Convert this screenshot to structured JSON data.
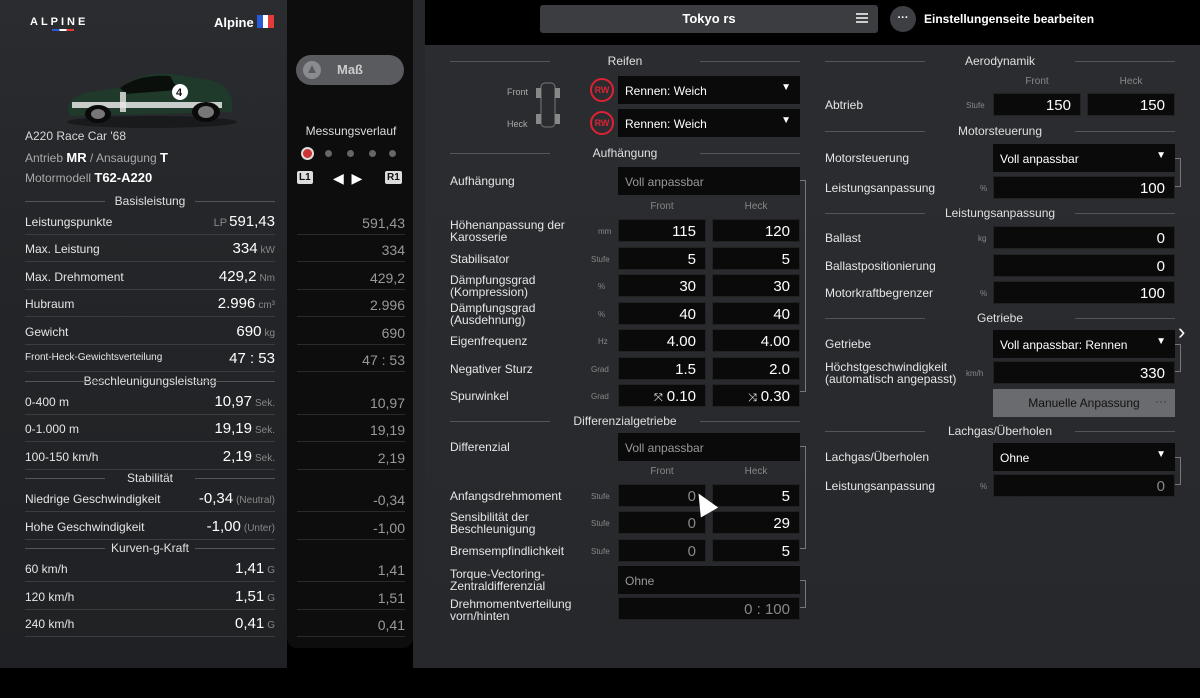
{
  "header": {
    "brand": "ALPINE",
    "manufacturer": "Alpine",
    "flag_colors": [
      "#2a5bd7",
      "#ffffff",
      "#e43a3a"
    ],
    "setup_name": "Tokyo rs",
    "edit_label": "Einstellungenseite bearbeiten",
    "edit_icon": "···"
  },
  "car": {
    "name": "A220 Race Car '68",
    "drive_label": "Antrieb",
    "drive_value": "MR",
    "aspiration_label": "Ansaugung",
    "aspiration_value": "T",
    "engine_label": "Motormodell",
    "engine_value": "T62-A220"
  },
  "stats": {
    "basis_title": "Basisleistung",
    "accel_title": "Beschleunigungsleistung",
    "stab_title": "Stabilität",
    "corner_title": "Kurven-g-Kraft",
    "rows": [
      {
        "label": "Leistungspunkte",
        "prefix": "LP",
        "value": "591,43",
        "unit": "",
        "measured": "591,43"
      },
      {
        "label": "Max. Leistung",
        "prefix": "",
        "value": "334",
        "unit": "kW",
        "measured": "334"
      },
      {
        "label": "Max. Drehmoment",
        "prefix": "",
        "value": "429,2",
        "unit": "Nm",
        "measured": "429,2"
      },
      {
        "label": "Hubraum",
        "prefix": "",
        "value": "2.996",
        "unit": "cm³",
        "measured": "2.996"
      },
      {
        "label": "Gewicht",
        "prefix": "",
        "value": "690",
        "unit": "kg",
        "measured": "690"
      },
      {
        "label": "Front-Heck-Gewichtsverteilung",
        "prefix": "",
        "value": "47 : 53",
        "unit": "",
        "measured": "47 : 53"
      },
      {
        "label": "0-400 m",
        "prefix": "",
        "value": "10,97",
        "unit": "Sek.",
        "measured": "10,97"
      },
      {
        "label": "0-1.000 m",
        "prefix": "",
        "value": "19,19",
        "unit": "Sek.",
        "measured": "19,19"
      },
      {
        "label": "100-150 km/h",
        "prefix": "",
        "value": "2,19",
        "unit": "Sek.",
        "measured": "2,19"
      },
      {
        "label": "Niedrige Geschwindigkeit",
        "prefix": "",
        "value": "-0,34",
        "unit": "(Neutral)",
        "measured": "-0,34"
      },
      {
        "label": "Hohe Geschwindigkeit",
        "prefix": "",
        "value": "-1,00",
        "unit": "(Unter)",
        "measured": "-1,00"
      },
      {
        "label": "60 km/h",
        "prefix": "",
        "value": "1,41",
        "unit": "G",
        "measured": "1,41"
      },
      {
        "label": "120 km/h",
        "prefix": "",
        "value": "1,51",
        "unit": "G",
        "measured": "1,51"
      },
      {
        "label": "240 km/h",
        "prefix": "",
        "value": "0,41",
        "unit": "G",
        "measured": "0,41"
      }
    ]
  },
  "measure": {
    "button_label": "Maß",
    "history_title": "Messungsverlauf",
    "l1": "L1",
    "r1": "R1"
  },
  "tuning": {
    "cols": {
      "front": "Front",
      "rear": "Heck"
    },
    "tires": {
      "title": "Reifen",
      "front_label": "Front",
      "rear_label": "Heck",
      "badge": "RW",
      "front_value": "Rennen: Weich",
      "rear_value": "Rennen: Weich"
    },
    "suspension": {
      "title": "Aufhängung",
      "label": "Aufhängung",
      "value": "Voll anpassbar",
      "rows": [
        {
          "label": "Höhenanpassung der Karosserie",
          "unit": "mm",
          "front": "115",
          "rear": "120"
        },
        {
          "label": "Stabilisator",
          "unit": "Stufe",
          "front": "5",
          "rear": "5"
        },
        {
          "label": "Dämpfungsgrad (Kompression)",
          "unit": "%",
          "front": "30",
          "rear": "30"
        },
        {
          "label": "Dämpfungsgrad (Ausdehnung)",
          "unit": "%",
          "front": "40",
          "rear": "40"
        },
        {
          "label": "Eigenfrequenz",
          "unit": "Hz",
          "front": "4.00",
          "rear": "4.00"
        },
        {
          "label": "Negativer Sturz",
          "unit": "Grad",
          "front": "1.5",
          "rear": "2.0"
        },
        {
          "label": "Spurwinkel",
          "unit": "Grad",
          "front": "0.10",
          "rear": "0.30",
          "front_icon": "toe-out-icon",
          "rear_icon": "toe-in-icon"
        }
      ]
    },
    "diff": {
      "title": "Differenzialgetriebe",
      "label": "Differenzial",
      "value": "Voll anpassbar",
      "rows": [
        {
          "label": "Anfangsdrehmoment",
          "unit": "Stufe",
          "front": "0",
          "rear": "5"
        },
        {
          "label": "Sensibilität der Beschleunigung",
          "unit": "Stufe",
          "front": "0",
          "rear": "29"
        },
        {
          "label": "Bremsempfindlichkeit",
          "unit": "Stufe",
          "front": "0",
          "rear": "5"
        }
      ],
      "tv_label": "Torque-Vectoring-Zentraldifferenzial",
      "tv_value": "Ohne",
      "dist_label": "Drehmomentverteilung vorn/hinten",
      "dist_value": "0 : 100"
    },
    "aero": {
      "title": "Aerodynamik",
      "label": "Abtrieb",
      "unit": "Stufe",
      "front": "150",
      "rear": "150"
    },
    "ecu": {
      "title": "Motorsteuerung",
      "label": "Motorsteuerung",
      "value": "Voll anpassbar",
      "out_label": "Leistungsanpassung",
      "out_unit": "%",
      "out_value": "100"
    },
    "power": {
      "title": "Leistungsanpassung",
      "ballast_label": "Ballast",
      "ballast_unit": "kg",
      "ballast_value": "0",
      "pos_label": "Ballastpositionierung",
      "pos_value": "0",
      "limit_label": "Motorkraftbegrenzer",
      "limit_unit": "%",
      "limit_value": "100"
    },
    "transmission": {
      "title": "Getriebe",
      "label": "Getriebe",
      "value": "Voll anpassbar: Rennen",
      "top_label": "Höchstgeschwindigkeit (automatisch angepasst)",
      "top_unit": "km/h",
      "top_value": "330",
      "manual_label": "Manuelle Anpassung",
      "manual_more": "···"
    },
    "nitro": {
      "title": "Lachgas/Überholen",
      "label": "Lachgas/Überholen",
      "value": "Ohne",
      "out_label": "Leistungsanpassung",
      "out_unit": "%",
      "out_value": "0"
    }
  }
}
